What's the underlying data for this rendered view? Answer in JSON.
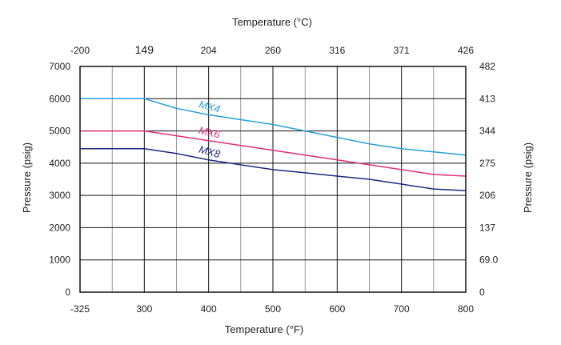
{
  "chart_data": {
    "type": "line",
    "xlabel": "Temperature (°F)",
    "x2label": "Temperature (°C)",
    "ylabel": "Pressure (psig)",
    "y2label": "Pressure (psig)",
    "xlim": [
      -325,
      800
    ],
    "ylim": [
      0,
      7000
    ],
    "grid": true,
    "x_ticks": [
      -325,
      300,
      400,
      500,
      600,
      700,
      800
    ],
    "x_tick_labels": [
      "-325",
      "300",
      "400",
      "500",
      "600",
      "700",
      "800"
    ],
    "x2_ticks": [
      -200,
      149,
      204,
      260,
      316,
      371,
      426
    ],
    "x2_tick_labels": [
      "-200",
      "149",
      "204",
      "260",
      "316",
      "371",
      "426"
    ],
    "y_ticks": [
      0,
      1000,
      2000,
      3000,
      4000,
      5000,
      6000,
      7000
    ],
    "y_tick_labels": [
      "0",
      "1000",
      "2000",
      "3000",
      "4000",
      "5000",
      "6000",
      "7000"
    ],
    "y2_ticks": [
      0,
      69,
      137,
      206,
      275,
      344,
      413,
      482
    ],
    "y2_tick_labels": [
      "0",
      "69.0",
      "137",
      "206",
      "275",
      "344",
      "413",
      "482"
    ],
    "series": [
      {
        "name": "MX4",
        "color": "#2aa0d8",
        "x": [
          -325,
          300,
          350,
          400,
          450,
          500,
          550,
          600,
          650,
          700,
          750,
          800
        ],
        "y": [
          6000,
          6000,
          5700,
          5500,
          5350,
          5200,
          5000,
          4800,
          4600,
          4450,
          4350,
          4250
        ]
      },
      {
        "name": "MX6",
        "color": "#e0307a",
        "x": [
          -325,
          300,
          350,
          400,
          450,
          500,
          550,
          600,
          650,
          700,
          750,
          800
        ],
        "y": [
          5000,
          5000,
          4850,
          4700,
          4550,
          4400,
          4250,
          4100,
          3950,
          3800,
          3650,
          3600
        ]
      },
      {
        "name": "MX8",
        "color": "#1f2a80",
        "x": [
          -325,
          300,
          350,
          400,
          450,
          500,
          550,
          600,
          650,
          700,
          750,
          800
        ],
        "y": [
          4450,
          4450,
          4300,
          4100,
          3950,
          3800,
          3700,
          3600,
          3500,
          3350,
          3200,
          3150
        ]
      }
    ]
  }
}
